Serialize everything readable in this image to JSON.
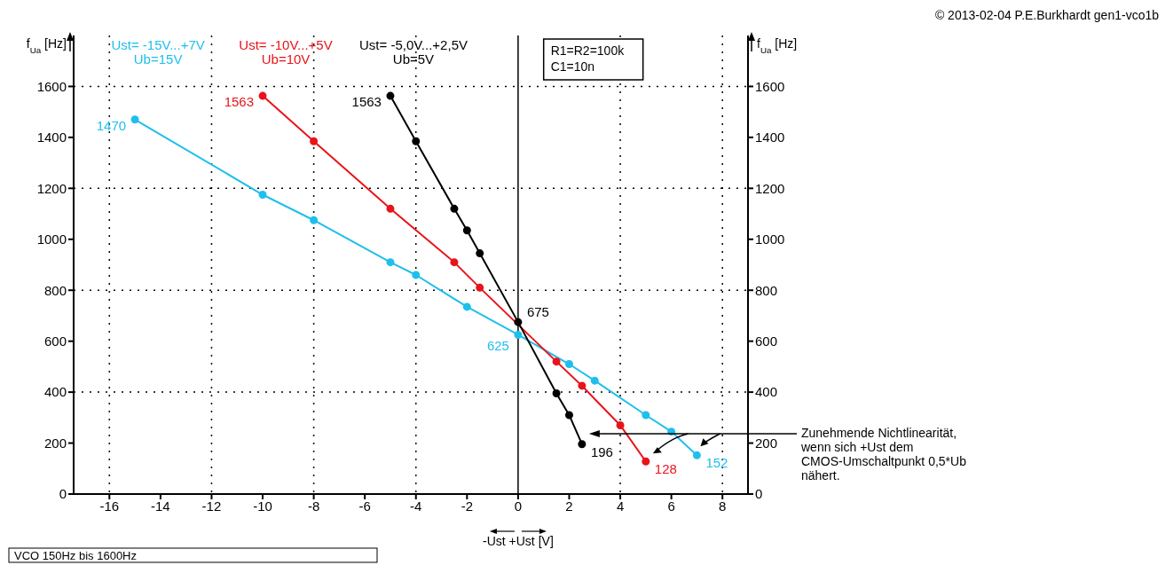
{
  "chart_data": {
    "type": "line",
    "title": "VCO 150Hz bis 1600Hz",
    "xlabel": "-Ust  +Ust [V]",
    "ylabel": "f$_{Ua}$ [Hz]",
    "y2label": "f$_{Ua}$ [Hz]",
    "xlim": [
      -17.4,
      9
    ],
    "xticks": [
      -16,
      -14,
      -12,
      -10,
      -8,
      -6,
      -4,
      -2,
      0,
      2,
      4,
      6,
      8
    ],
    "ylim": [
      0,
      1800
    ],
    "yticks": [
      0,
      200,
      400,
      600,
      800,
      1000,
      1200,
      1400,
      1600
    ],
    "y2lim": [
      0,
      1800
    ],
    "y2ticks": [
      0,
      200,
      400,
      600,
      800,
      1000,
      1200,
      1400,
      1600
    ],
    "grid": true,
    "legend": false,
    "marker": "circle",
    "line_style": "solid",
    "series": [
      {
        "name": "Ust= -15V...+7V\nUb=15V",
        "color": "#1fbfec",
        "x": [
          -15,
          -10,
          -8,
          -5,
          -4,
          -2,
          0,
          2,
          3,
          5,
          6,
          7
        ],
        "values": [
          1470,
          1175,
          1075,
          910,
          860,
          735,
          625,
          510,
          445,
          310,
          245,
          152
        ],
        "value_labels": [
          "1470",
          null,
          null,
          null,
          null,
          null,
          "625",
          null,
          null,
          null,
          null,
          "152"
        ]
      },
      {
        "name": "Ust= -10V...+5V\nUb=10V",
        "color": "#e8141a",
        "x": [
          -10,
          -8,
          -5,
          -2.5,
          -1.5,
          1.5,
          2.5,
          4,
          5
        ],
        "values": [
          1563,
          1385,
          1120,
          910,
          810,
          520,
          425,
          270,
          128
        ],
        "value_labels": [
          "1563",
          null,
          null,
          null,
          null,
          null,
          null,
          null,
          "128"
        ]
      },
      {
        "name": "Ust= -5,0V...+2,5V\nUb=5V",
        "color": "#000000",
        "x": [
          -5,
          -4,
          -2.5,
          -2,
          -1.5,
          0,
          1.5,
          2,
          2.5
        ],
        "values": [
          1563,
          1385,
          1120,
          1035,
          945,
          675,
          395,
          310,
          196
        ],
        "value_labels": [
          "1563",
          null,
          null,
          null,
          null,
          "675",
          null,
          null,
          "196"
        ]
      }
    ],
    "ref_lines": [
      {
        "axis": "x",
        "value": 0,
        "color": "#000000",
        "line_style": "solid"
      }
    ],
    "annotations": [
      "© 2013-02-04 P.E.Burkhardt gen1-vco1b",
      "R1=R2=100k\nC1=10n",
      "Zunehmende Nichtlinearität,\nwenn sich +Ust  dem\nCMOS-Umschaltpunkt 0,5*Ub\nnähert."
    ]
  }
}
